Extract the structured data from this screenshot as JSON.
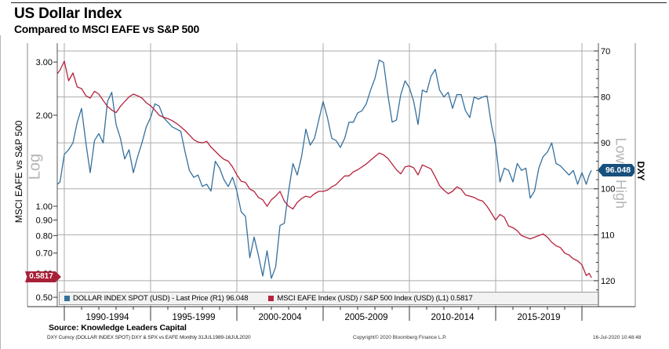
{
  "header": {
    "title": "US Dollar Index",
    "subtitle": "Compared to MSCI EAFE vs S&P 500"
  },
  "left_axis": {
    "title": "MSCI EAFE vs S&P 500",
    "scale_label": "Log",
    "tick_labels": [
      "3.00",
      "2.00",
      "1.00",
      "0.90",
      "0.80",
      "0.70",
      "0.60",
      "0.50"
    ],
    "tick_values": [
      3.0,
      2.0,
      1.0,
      0.9,
      0.8,
      0.7,
      0.6,
      0.5
    ],
    "last_value_badge": "0.5817",
    "badge_color": "#a82038"
  },
  "right_axis": {
    "title": "DXY",
    "scale_label": "Low = High",
    "tick_labels": [
      "70",
      "80",
      "90",
      "100",
      "110",
      "120"
    ],
    "tick_values": [
      70,
      80,
      90,
      100,
      110,
      120
    ],
    "last_value_badge": "96.048",
    "badge_color": "#17507d"
  },
  "x_axis": {
    "period_labels": [
      "1990-1994",
      "1995-1999",
      "2000-2004",
      "2005-2009",
      "2010-2014",
      "2015-2019"
    ],
    "period_centers": [
      1992.5,
      1997.5,
      2002.5,
      2007.5,
      2012.5,
      2017.5
    ],
    "gridline_years": [
      1990,
      1995,
      2000,
      2005,
      2010,
      2015,
      2020
    ]
  },
  "legend": {
    "items": [
      {
        "label": "DOLLAR INDEX SPOT (USD) - Last Price (R1) 96.048",
        "color": "#35709e"
      },
      {
        "label": "MSCI EAFE Index (USD) / S&P 500 Index (USD) (L1) 0.5817",
        "color": "#b5233d"
      }
    ]
  },
  "footer": {
    "source": "Source: Knowledge Leaders Capital",
    "ticker_line": "DXY Curncy (DOLLAR INDEX SPOT) DXY & SPX vs EAFE  Monthly 31JUL1989-16JUL2020",
    "copyright": "Copyright© 2020 Bloomberg Finance L.P.",
    "datetime": "16-Jul-2020 10:48:48"
  },
  "chart_data": {
    "type": "line",
    "title": "US Dollar Index compared to MSCI EAFE vs S&P 500",
    "x_label": "Year (monthly, 31JUL1989-16JUL2020)",
    "x_range": [
      1989.6,
      2020.54
    ],
    "grid": true,
    "legend_position": "bottom",
    "right_axis": {
      "label": "DXY",
      "scale": "linear",
      "inverted": true,
      "range": [
        70,
        120
      ],
      "note": "Low = High"
    },
    "left_axis": {
      "label": "MSCI EAFE vs S&P 500",
      "scale": "log",
      "range": [
        0.5,
        3.2
      ]
    },
    "series": [
      {
        "name": "DOLLAR INDEX SPOT (USD)",
        "axis": "right",
        "color": "#35709e",
        "last_price": 96.048,
        "points": [
          [
            1989.6,
            99.0
          ],
          [
            1989.75,
            98.5
          ],
          [
            1990,
            92.5
          ],
          [
            1990.25,
            91.5
          ],
          [
            1990.5,
            90
          ],
          [
            1990.75,
            85.5
          ],
          [
            1991,
            82.5
          ],
          [
            1991.25,
            90
          ],
          [
            1991.5,
            96.5
          ],
          [
            1991.75,
            89.5
          ],
          [
            1992,
            88
          ],
          [
            1992.25,
            90
          ],
          [
            1992.5,
            81
          ],
          [
            1992.75,
            79
          ],
          [
            1993,
            86
          ],
          [
            1993.25,
            89
          ],
          [
            1993.5,
            93.5
          ],
          [
            1993.75,
            91.5
          ],
          [
            1994,
            96.5
          ],
          [
            1994.25,
            93
          ],
          [
            1994.5,
            90
          ],
          [
            1994.75,
            86.5
          ],
          [
            1995,
            84.5
          ],
          [
            1995.25,
            81.5
          ],
          [
            1995.5,
            82
          ],
          [
            1995.75,
            84.5
          ],
          [
            1996,
            85.5
          ],
          [
            1996.25,
            86.5
          ],
          [
            1996.5,
            87
          ],
          [
            1996.75,
            87.5
          ],
          [
            1997,
            92
          ],
          [
            1997.25,
            96
          ],
          [
            1997.5,
            97.5
          ],
          [
            1997.75,
            97
          ],
          [
            1998,
            99.5
          ],
          [
            1998.25,
            99
          ],
          [
            1998.5,
            100.5
          ],
          [
            1998.75,
            94
          ],
          [
            1999,
            95.5
          ],
          [
            1999.25,
            98
          ],
          [
            1999.5,
            99.5
          ],
          [
            1999.75,
            97.5
          ],
          [
            2000,
            100.5
          ],
          [
            2000.25,
            105
          ],
          [
            2000.5,
            106
          ],
          [
            2000.75,
            115
          ],
          [
            2001,
            110.5
          ],
          [
            2001.25,
            114.5
          ],
          [
            2001.5,
            119
          ],
          [
            2001.75,
            113.5
          ],
          [
            2002,
            119.5
          ],
          [
            2002.25,
            117
          ],
          [
            2002.5,
            108
          ],
          [
            2002.75,
            107.5
          ],
          [
            2003,
            100.5
          ],
          [
            2003.25,
            94.5
          ],
          [
            2003.5,
            97
          ],
          [
            2003.75,
            93
          ],
          [
            2004,
            87
          ],
          [
            2004.25,
            90.5
          ],
          [
            2004.5,
            89
          ],
          [
            2004.75,
            85
          ],
          [
            2005,
            81
          ],
          [
            2005.25,
            84.5
          ],
          [
            2005.5,
            89
          ],
          [
            2005.75,
            89.5
          ],
          [
            2006,
            91
          ],
          [
            2006.25,
            89
          ],
          [
            2006.5,
            85.5
          ],
          [
            2006.75,
            85.5
          ],
          [
            2007,
            83.5
          ],
          [
            2007.25,
            83
          ],
          [
            2007.5,
            81.5
          ],
          [
            2007.75,
            78.5
          ],
          [
            2008,
            76
          ],
          [
            2008.25,
            72
          ],
          [
            2008.5,
            72.5
          ],
          [
            2008.75,
            79.5
          ],
          [
            2009,
            85.5
          ],
          [
            2009.25,
            85
          ],
          [
            2009.5,
            79.5
          ],
          [
            2009.75,
            76.5
          ],
          [
            2010,
            78
          ],
          [
            2010.25,
            81
          ],
          [
            2010.5,
            86
          ],
          [
            2010.75,
            78.5
          ],
          [
            2011,
            79
          ],
          [
            2011.25,
            75.5
          ],
          [
            2011.5,
            74
          ],
          [
            2011.75,
            78.5
          ],
          [
            2012,
            80
          ],
          [
            2012.25,
            79
          ],
          [
            2012.5,
            82.5
          ],
          [
            2012.75,
            79.5
          ],
          [
            2013,
            79.5
          ],
          [
            2013.25,
            83
          ],
          [
            2013.5,
            84.5
          ],
          [
            2013.75,
            80
          ],
          [
            2014,
            80.5
          ],
          [
            2014.25,
            80
          ],
          [
            2014.5,
            79.8
          ],
          [
            2014.75,
            86
          ],
          [
            2015,
            90.5
          ],
          [
            2015.25,
            98.5
          ],
          [
            2015.5,
            95.5
          ],
          [
            2015.75,
            96
          ],
          [
            2016,
            98.5
          ],
          [
            2016.25,
            94.5
          ],
          [
            2016.5,
            96
          ],
          [
            2016.75,
            95.5
          ],
          [
            2017,
            102
          ],
          [
            2017.25,
            100.5
          ],
          [
            2017.5,
            95.5
          ],
          [
            2017.75,
            93
          ],
          [
            2018,
            92
          ],
          [
            2018.25,
            90
          ],
          [
            2018.5,
            94.5
          ],
          [
            2018.75,
            95
          ],
          [
            2019,
            96
          ],
          [
            2019.25,
            97
          ],
          [
            2019.5,
            96
          ],
          [
            2019.75,
            99
          ],
          [
            2020,
            96.5
          ],
          [
            2020.25,
            99
          ],
          [
            2020.42,
            97
          ],
          [
            2020.54,
            96.048
          ]
        ]
      },
      {
        "name": "MSCI EAFE Index (USD) / S&P 500 Index (USD)",
        "axis": "left",
        "color": "#b5233d",
        "last_price": 0.5817,
        "points": [
          [
            1989.6,
            2.75
          ],
          [
            1989.75,
            2.82
          ],
          [
            1990,
            3.02
          ],
          [
            1990.25,
            2.6
          ],
          [
            1990.5,
            2.76
          ],
          [
            1990.75,
            2.48
          ],
          [
            1991,
            2.45
          ],
          [
            1991.25,
            2.32
          ],
          [
            1991.5,
            2.28
          ],
          [
            1991.75,
            2.4
          ],
          [
            1992,
            2.35
          ],
          [
            1992.25,
            2.24
          ],
          [
            1992.5,
            2.14
          ],
          [
            1992.75,
            2.08
          ],
          [
            1993,
            2.04
          ],
          [
            1993.25,
            2.14
          ],
          [
            1993.5,
            2.22
          ],
          [
            1993.75,
            2.3
          ],
          [
            1994,
            2.35
          ],
          [
            1994.25,
            2.32
          ],
          [
            1994.5,
            2.28
          ],
          [
            1994.75,
            2.2
          ],
          [
            1995,
            2.15
          ],
          [
            1995.25,
            2.08
          ],
          [
            1995.5,
            2.0
          ],
          [
            1995.75,
            1.97
          ],
          [
            1996,
            1.95
          ],
          [
            1996.25,
            1.92
          ],
          [
            1996.5,
            1.88
          ],
          [
            1996.75,
            1.83
          ],
          [
            1997,
            1.78
          ],
          [
            1997.25,
            1.72
          ],
          [
            1997.5,
            1.66
          ],
          [
            1997.75,
            1.63
          ],
          [
            1998,
            1.62
          ],
          [
            1998.25,
            1.64
          ],
          [
            1998.5,
            1.57
          ],
          [
            1998.75,
            1.52
          ],
          [
            1999,
            1.47
          ],
          [
            1999.25,
            1.43
          ],
          [
            1999.5,
            1.41
          ],
          [
            1999.75,
            1.35
          ],
          [
            2000,
            1.27
          ],
          [
            2000.25,
            1.21
          ],
          [
            2000.5,
            1.2
          ],
          [
            2000.75,
            1.14
          ],
          [
            2001,
            1.12
          ],
          [
            2001.25,
            1.07
          ],
          [
            2001.5,
            1.05
          ],
          [
            2001.75,
            1.0
          ],
          [
            2002,
            1.05
          ],
          [
            2002.25,
            1.08
          ],
          [
            2002.5,
            1.12
          ],
          [
            2002.75,
            1.04
          ],
          [
            2003,
            1.0
          ],
          [
            2003.25,
            0.98
          ],
          [
            2003.5,
            1.03
          ],
          [
            2003.75,
            1.06
          ],
          [
            2004,
            1.08
          ],
          [
            2004.25,
            1.07
          ],
          [
            2004.5,
            1.1
          ],
          [
            2004.75,
            1.12
          ],
          [
            2005,
            1.12
          ],
          [
            2005.25,
            1.13
          ],
          [
            2005.5,
            1.16
          ],
          [
            2005.75,
            1.18
          ],
          [
            2006,
            1.22
          ],
          [
            2006.25,
            1.26
          ],
          [
            2006.5,
            1.26
          ],
          [
            2006.75,
            1.3
          ],
          [
            2007,
            1.32
          ],
          [
            2007.25,
            1.35
          ],
          [
            2007.5,
            1.38
          ],
          [
            2007.75,
            1.42
          ],
          [
            2008,
            1.46
          ],
          [
            2008.25,
            1.5
          ],
          [
            2008.5,
            1.48
          ],
          [
            2008.75,
            1.44
          ],
          [
            2009,
            1.38
          ],
          [
            2009.25,
            1.32
          ],
          [
            2009.5,
            1.28
          ],
          [
            2009.75,
            1.35
          ],
          [
            2010,
            1.36
          ],
          [
            2010.25,
            1.34
          ],
          [
            2010.5,
            1.27
          ],
          [
            2010.75,
            1.37
          ],
          [
            2011,
            1.35
          ],
          [
            2011.25,
            1.33
          ],
          [
            2011.5,
            1.25
          ],
          [
            2011.75,
            1.17
          ],
          [
            2012,
            1.13
          ],
          [
            2012.25,
            1.1
          ],
          [
            2012.5,
            1.12
          ],
          [
            2012.75,
            1.16
          ],
          [
            2013,
            1.14
          ],
          [
            2013.25,
            1.09
          ],
          [
            2013.5,
            1.08
          ],
          [
            2013.75,
            1.07
          ],
          [
            2014,
            1.05
          ],
          [
            2014.25,
            1.04
          ],
          [
            2014.5,
            1.0
          ],
          [
            2014.75,
            0.95
          ],
          [
            2015,
            0.9
          ],
          [
            2015.25,
            0.94
          ],
          [
            2015.5,
            0.92
          ],
          [
            2015.75,
            0.86
          ],
          [
            2016,
            0.85
          ],
          [
            2016.25,
            0.83
          ],
          [
            2016.5,
            0.8
          ],
          [
            2016.75,
            0.79
          ],
          [
            2017,
            0.78
          ],
          [
            2017.25,
            0.79
          ],
          [
            2017.5,
            0.8
          ],
          [
            2017.75,
            0.81
          ],
          [
            2018,
            0.79
          ],
          [
            2018.25,
            0.76
          ],
          [
            2018.5,
            0.74
          ],
          [
            2018.75,
            0.73
          ],
          [
            2019,
            0.7
          ],
          [
            2019.25,
            0.69
          ],
          [
            2019.5,
            0.67
          ],
          [
            2019.75,
            0.66
          ],
          [
            2020,
            0.64
          ],
          [
            2020.25,
            0.59
          ],
          [
            2020.42,
            0.6
          ],
          [
            2020.54,
            0.5817
          ]
        ]
      }
    ]
  }
}
